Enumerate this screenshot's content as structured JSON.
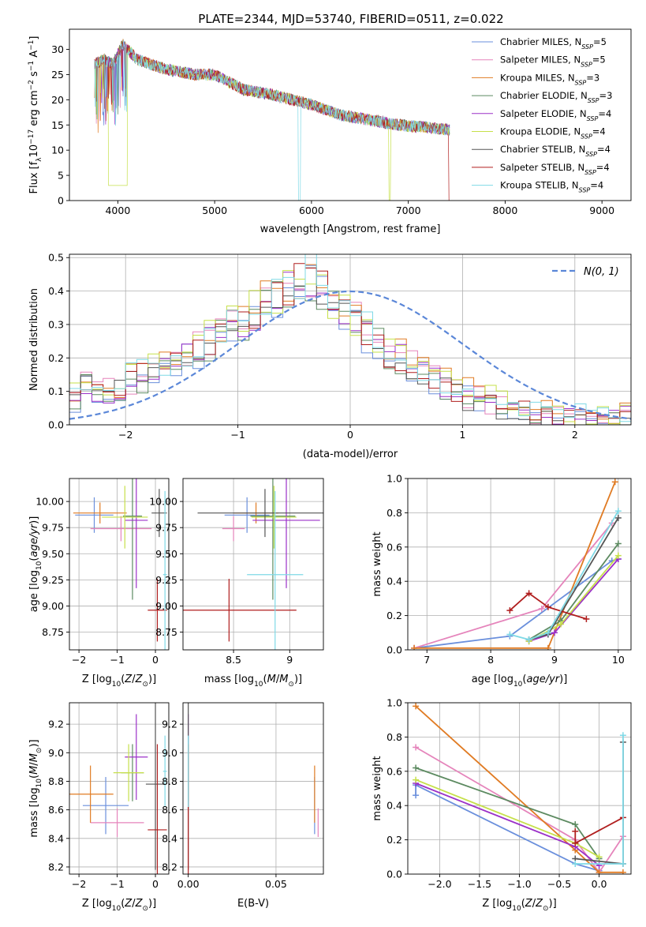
{
  "figure_title": "PLATE=2344, MJD=53740, FIBERID=0511, z=0.022",
  "series": [
    {
      "name": "Chabrier MILES",
      "nssp": "5",
      "color": "#6a8fdc"
    },
    {
      "name": "Salpeter MILES",
      "nssp": "5",
      "color": "#e584bb"
    },
    {
      "name": "Kroupa MILES",
      "nssp": "3",
      "color": "#e07b23"
    },
    {
      "name": "Chabrier ELODIE",
      "nssp": "3",
      "color": "#5c8a60"
    },
    {
      "name": "Salpeter ELODIE",
      "nssp": "4",
      "color": "#9b30c8"
    },
    {
      "name": "Kroupa ELODIE",
      "nssp": "4",
      "color": "#c6e04a"
    },
    {
      "name": "Chabrier STELIB",
      "nssp": "4",
      "color": "#555555"
    },
    {
      "name": "Salpeter STELIB",
      "nssp": "4",
      "color": "#b01e1e"
    },
    {
      "name": "Kroupa STELIB",
      "nssp": "4",
      "color": "#7fd9e6"
    }
  ],
  "chart_data": [
    {
      "id": "spectrum",
      "type": "line",
      "xlabel": "wavelength [Angstrom, rest frame]",
      "ylabel_parts": [
        "Flux [f",
        "λ",
        "10",
        "−17",
        " erg cm",
        "−2",
        " s",
        "−1",
        " A",
        "−1",
        "]"
      ],
      "xlim": [
        3500,
        9300
      ],
      "ylim": [
        0,
        34
      ],
      "xticks": [
        4000,
        5000,
        6000,
        7000,
        8000,
        9000
      ],
      "yticks": [
        0,
        5,
        10,
        15,
        20,
        25,
        30
      ],
      "legend": "top-right",
      "continuum": {
        "x": [
          3760,
          3850,
          3950,
          4050,
          4200,
          4500,
          4800,
          5000,
          5300,
          5600,
          6000,
          6300,
          6600,
          6900,
          7200,
          7430
        ],
        "y": [
          27,
          28,
          27,
          31,
          28,
          26,
          25,
          25,
          22,
          21,
          19,
          17,
          16,
          15,
          14.5,
          14
        ]
      },
      "drops": [
        {
          "series": "Kroupa ELODIE",
          "x_start": 3900,
          "x_end": 4100,
          "y_min": 3
        },
        {
          "series": "Kroupa STELIB",
          "x_start": 5865,
          "x_end": 5885,
          "y_min": 0
        },
        {
          "series": "Kroupa ELODIE",
          "x_start": 6800,
          "x_end": 6815,
          "y_min": 0
        },
        {
          "series": "Salpeter STELIB",
          "x_start": 7420,
          "x_end": 7440,
          "y_min": 0
        }
      ]
    },
    {
      "id": "residuals",
      "type": "step",
      "xlabel": "(data-model)/error",
      "ylabel": "Normed distribution",
      "xlim": [
        -2.5,
        2.5
      ],
      "ylim": [
        0,
        0.51
      ],
      "xticks": [
        -2,
        -1,
        0,
        1,
        2
      ],
      "yticks": [
        0.0,
        0.1,
        0.2,
        0.3,
        0.4,
        0.5
      ],
      "legend_label": "N(0, 1)",
      "legend": "top-right",
      "bin_edges_start": -2.5,
      "bin_width": 0.1,
      "histogram_values": [
        0.09,
        0.12,
        0.1,
        0.1,
        0.11,
        0.13,
        0.14,
        0.16,
        0.18,
        0.19,
        0.21,
        0.23,
        0.25,
        0.28,
        0.3,
        0.32,
        0.34,
        0.36,
        0.38,
        0.4,
        0.42,
        0.44,
        0.4,
        0.36,
        0.33,
        0.31,
        0.28,
        0.25,
        0.22,
        0.2,
        0.18,
        0.16,
        0.14,
        0.12,
        0.11,
        0.09,
        0.08,
        0.07,
        0.06,
        0.05,
        0.04,
        0.03,
        0.03,
        0.02,
        0.02,
        0.02,
        0.02,
        0.02,
        0.02,
        0.02
      ],
      "gaussian": {
        "mean": 0,
        "sigma": 1,
        "peak": 0.399
      }
    },
    {
      "id": "age_vs_Z",
      "type": "errorbar",
      "xlabel": "Z [log10(Z/Z⊙)]",
      "ylabel": "age [log10(age/yr)]",
      "xlim": [
        -2.25,
        0.35
      ],
      "ylim": [
        8.58,
        10.22
      ],
      "xticks": [
        -2,
        -1,
        0
      ],
      "yticks": [
        8.75,
        9.0,
        9.25,
        9.5,
        9.75,
        10.0
      ],
      "points": [
        {
          "series": "Chabrier MILES",
          "x": -1.6,
          "xerr": 0.5,
          "y": 9.87,
          "yerr": 0.17
        },
        {
          "series": "Salpeter MILES",
          "x": -0.9,
          "xerr": 0.8,
          "y": 9.74,
          "yerr": 0.12
        },
        {
          "series": "Kroupa MILES",
          "x": -1.45,
          "xerr": 0.7,
          "y": 9.89,
          "yerr": 0.1
        },
        {
          "series": "Chabrier ELODIE",
          "x": -0.6,
          "xerr": 0.25,
          "y": 9.86,
          "yerr": 0.8
        },
        {
          "series": "Salpeter ELODIE",
          "x": -0.5,
          "xerr": 0.3,
          "y": 9.82,
          "yerr": 0.65
        },
        {
          "series": "Kroupa ELODIE",
          "x": -0.8,
          "xerr": 0.6,
          "y": 9.85,
          "yerr": 0.3
        },
        {
          "series": "Chabrier STELIB",
          "x": 0.1,
          "xerr": 0.2,
          "y": 9.89,
          "yerr": 0.23
        },
        {
          "series": "Salpeter STELIB",
          "x": 0.05,
          "xerr": 0.25,
          "y": 8.96,
          "yerr": 0.3
        },
        {
          "series": "Kroupa STELIB",
          "x": 0.25,
          "xerr": 0.05,
          "y": 9.3,
          "yerr": 0.8
        }
      ]
    },
    {
      "id": "age_vs_mass",
      "type": "errorbar",
      "xlabel": "mass [log10(M/M⊙)]",
      "ylabel": "",
      "xlim": [
        8.05,
        9.3
      ],
      "ylim": [
        8.58,
        10.22
      ],
      "xticks": [
        8.5,
        9.0
      ],
      "yticks": [
        8.75,
        9.0,
        9.25,
        9.5,
        9.75,
        10.0
      ],
      "points": [
        {
          "series": "Chabrier MILES",
          "x": 8.62,
          "xerr": 0.2,
          "y": 9.87,
          "yerr": 0.17
        },
        {
          "series": "Salpeter MILES",
          "x": 8.5,
          "xerr": 0.1,
          "y": 9.74,
          "yerr": 0.12
        },
        {
          "series": "Kroupa MILES",
          "x": 8.7,
          "xerr": 0.2,
          "y": 9.89,
          "yerr": 0.1
        },
        {
          "series": "Chabrier ELODIE",
          "x": 8.85,
          "xerr": 0.2,
          "y": 9.86,
          "yerr": 0.8
        },
        {
          "series": "Salpeter ELODIE",
          "x": 8.97,
          "xerr": 0.3,
          "y": 9.82,
          "yerr": 0.65
        },
        {
          "series": "Kroupa ELODIE",
          "x": 8.86,
          "xerr": 0.2,
          "y": 9.85,
          "yerr": 0.3
        },
        {
          "series": "Chabrier STELIB",
          "x": 8.78,
          "xerr": 0.6,
          "y": 9.89,
          "yerr": 0.23
        },
        {
          "series": "Salpeter STELIB",
          "x": 8.46,
          "xerr": 0.6,
          "y": 8.96,
          "yerr": 0.3
        },
        {
          "series": "Kroupa STELIB",
          "x": 8.87,
          "xerr": 0.25,
          "y": 9.3,
          "yerr": 0.8
        }
      ]
    },
    {
      "id": "weight_vs_age",
      "type": "line",
      "xlabel": "age [log10(age/yr)]",
      "ylabel": "mass weight",
      "xlim": [
        6.7,
        10.2
      ],
      "ylim": [
        0,
        1
      ],
      "xticks": [
        7,
        8,
        9,
        10
      ],
      "yticks": [
        0.0,
        0.2,
        0.4,
        0.6,
        0.8,
        1.0
      ],
      "lines": [
        {
          "series": "Chabrier MILES",
          "x": [
            6.8,
            8.3,
            9.9,
            10.0
          ],
          "y": [
            0.01,
            0.08,
            0.52,
            0.53
          ]
        },
        {
          "series": "Salpeter MILES",
          "x": [
            6.8,
            8.8,
            9.9
          ],
          "y": [
            0.01,
            0.24,
            0.74
          ]
        },
        {
          "series": "Kroupa MILES",
          "x": [
            6.8,
            8.9,
            9.95
          ],
          "y": [
            0.01,
            0.01,
            0.98
          ]
        },
        {
          "series": "Chabrier ELODIE",
          "x": [
            8.6,
            9.1,
            10.0
          ],
          "y": [
            0.06,
            0.17,
            0.62
          ]
        },
        {
          "series": "Salpeter ELODIE",
          "x": [
            8.6,
            9.0,
            10.0
          ],
          "y": [
            0.05,
            0.1,
            0.53
          ]
        },
        {
          "series": "Kroupa ELODIE",
          "x": [
            8.6,
            9.1,
            10.0
          ],
          "y": [
            0.05,
            0.15,
            0.55
          ]
        },
        {
          "series": "Chabrier STELIB",
          "x": [
            8.6,
            8.9,
            10.0
          ],
          "y": [
            0.06,
            0.09,
            0.77
          ]
        },
        {
          "series": "Salpeter STELIB",
          "x": [
            8.3,
            8.6,
            8.9,
            9.5
          ],
          "y": [
            0.23,
            0.33,
            0.25,
            0.18
          ]
        },
        {
          "series": "Kroupa STELIB",
          "x": [
            8.3,
            8.6,
            8.9,
            10.0
          ],
          "y": [
            0.09,
            0.06,
            0.1,
            0.81
          ]
        }
      ]
    },
    {
      "id": "mass_vs_Z",
      "type": "errorbar",
      "xlabel": "Z [log10(Z/Z⊙)]",
      "ylabel": "mass [log10(M/M⊙)]",
      "xlim": [
        -2.25,
        0.35
      ],
      "ylim": [
        8.15,
        9.35
      ],
      "xticks": [
        -2,
        -1,
        0
      ],
      "yticks": [
        8.2,
        8.4,
        8.6,
        8.8,
        9.0,
        9.2
      ],
      "points": [
        {
          "series": "Chabrier MILES",
          "x": -1.3,
          "xerr": 0.6,
          "y": 8.63,
          "yerr": 0.2
        },
        {
          "series": "Salpeter MILES",
          "x": -1.0,
          "xerr": 0.7,
          "y": 8.51,
          "yerr": 0.1
        },
        {
          "series": "Kroupa MILES",
          "x": -1.7,
          "xerr": 0.6,
          "y": 8.71,
          "yerr": 0.2
        },
        {
          "series": "Chabrier ELODIE",
          "x": -0.6,
          "xerr": 0.3,
          "y": 8.86,
          "yerr": 0.2
        },
        {
          "series": "Salpeter ELODIE",
          "x": -0.5,
          "xerr": 0.3,
          "y": 8.97,
          "yerr": 0.3
        },
        {
          "series": "Kroupa ELODIE",
          "x": -0.7,
          "xerr": 0.4,
          "y": 8.86,
          "yerr": 0.2
        },
        {
          "series": "Chabrier STELIB",
          "x": 0.0,
          "xerr": 0.25,
          "y": 8.78,
          "yerr": 0.6
        },
        {
          "series": "Salpeter STELIB",
          "x": 0.05,
          "xerr": 0.25,
          "y": 8.46,
          "yerr": 0.6
        },
        {
          "series": "Kroupa STELIB",
          "x": 0.25,
          "xerr": 0.05,
          "y": 8.87,
          "yerr": 0.25
        }
      ]
    },
    {
      "id": "mass_vs_ebv",
      "type": "errorbar",
      "xlabel": "E(B-V)",
      "ylabel": "",
      "xlim": [
        -0.003,
        0.077
      ],
      "ylim": [
        8.15,
        9.35
      ],
      "xticks": [
        0.0,
        0.05
      ],
      "tick_labels": [
        "0.00",
        "0.05"
      ],
      "yticks": [
        8.2,
        8.4,
        8.6,
        8.8,
        9.0,
        9.2
      ],
      "points": [
        {
          "series": "Chabrier MILES",
          "x": 0.072,
          "xerr": 0,
          "y": 8.63,
          "yerr": 0.2
        },
        {
          "series": "Salpeter MILES",
          "x": 0.074,
          "xerr": 0,
          "y": 8.51,
          "yerr": 0.1
        },
        {
          "series": "Kroupa MILES",
          "x": 0.072,
          "xerr": 0,
          "y": 8.71,
          "yerr": 0.2
        },
        {
          "series": "Chabrier ELODIE",
          "x": 0.0,
          "xerr": 0,
          "y": 8.86,
          "yerr": 0.2
        },
        {
          "series": "Salpeter ELODIE",
          "x": 0.0,
          "xerr": 0,
          "y": 8.97,
          "yerr": 0.3
        },
        {
          "series": "Kroupa ELODIE",
          "x": 0.0,
          "xerr": 0,
          "y": 8.86,
          "yerr": 0.2
        },
        {
          "series": "Chabrier STELIB",
          "x": 0.0,
          "xerr": 0,
          "y": 8.78,
          "yerr": 0.6
        },
        {
          "series": "Salpeter STELIB",
          "x": 0.0,
          "xerr": 0,
          "y": 8.46,
          "yerr": 0.6
        },
        {
          "series": "Kroupa STELIB",
          "x": 0.0,
          "xerr": 0,
          "y": 8.87,
          "yerr": 0.25
        }
      ]
    },
    {
      "id": "weight_vs_Z",
      "type": "line",
      "xlabel": "Z [log10(Z/Z⊙)]",
      "ylabel": "mass weight",
      "xlim": [
        -2.4,
        0.4
      ],
      "ylim": [
        0,
        1
      ],
      "xticks": [
        -2.0,
        -1.5,
        -1.0,
        -0.5,
        0.0
      ],
      "tick_labels": [
        "−2.0",
        "−1.5",
        "−1.0",
        "−0.5",
        "0.0"
      ],
      "yticks": [
        0.0,
        0.2,
        0.4,
        0.6,
        0.8,
        1.0
      ],
      "lines": [
        {
          "series": "Chabrier MILES",
          "x": [
            -2.3,
            -2.3,
            -0.3,
            0.0
          ],
          "y": [
            0.46,
            0.52,
            0.06,
            0.02
          ]
        },
        {
          "series": "Salpeter MILES",
          "x": [
            -2.3,
            -0.3,
            0.0,
            0.3
          ],
          "y": [
            0.74,
            0.2,
            0.01,
            0.22
          ]
        },
        {
          "series": "Kroupa MILES",
          "x": [
            -2.3,
            -0.3,
            0.0,
            0.3
          ],
          "y": [
            0.98,
            0.14,
            0.01,
            0.01
          ]
        },
        {
          "series": "Chabrier ELODIE",
          "x": [
            -2.3,
            -0.3,
            0.0
          ],
          "y": [
            0.62,
            0.29,
            0.09
          ]
        },
        {
          "series": "Salpeter ELODIE",
          "x": [
            -2.3,
            -0.3,
            0.0
          ],
          "y": [
            0.53,
            0.16,
            0.05
          ]
        },
        {
          "series": "Kroupa ELODIE",
          "x": [
            -2.3,
            -0.3,
            0.0
          ],
          "y": [
            0.55,
            0.18,
            0.1
          ]
        },
        {
          "series": "Chabrier STELIB",
          "x": [
            -0.3,
            0.3,
            0.3
          ],
          "y": [
            0.09,
            0.06,
            0.77
          ]
        },
        {
          "series": "Salpeter STELIB",
          "x": [
            -0.3,
            -0.3,
            0.3
          ],
          "y": [
            0.25,
            0.18,
            0.33
          ]
        },
        {
          "series": "Kroupa STELIB",
          "x": [
            -0.3,
            0.3,
            0.3
          ],
          "y": [
            0.06,
            0.06,
            0.81
          ]
        }
      ]
    }
  ]
}
